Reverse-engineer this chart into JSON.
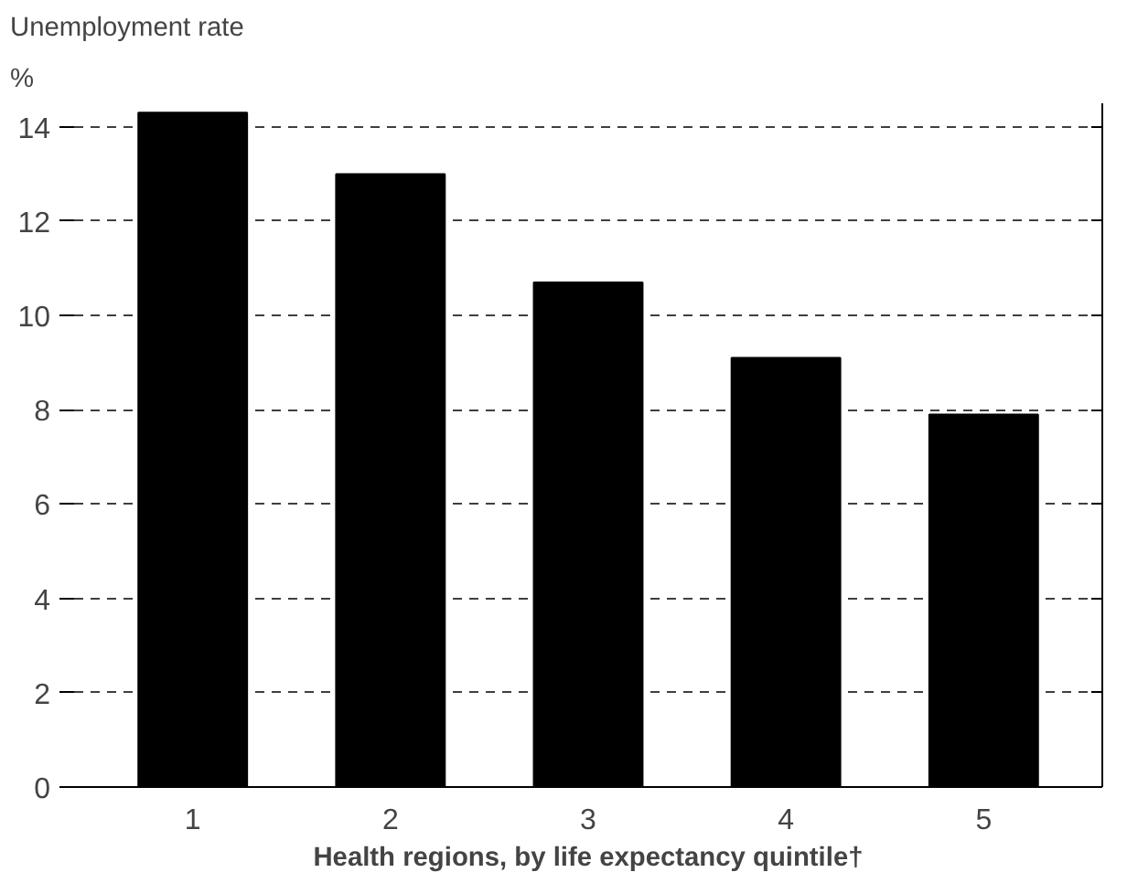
{
  "chart_data": {
    "type": "bar",
    "title": "Unemployment rate",
    "ylabel": "%",
    "xlabel": "Health regions, by life expectancy quintile†",
    "categories": [
      "1",
      "2",
      "3",
      "4",
      "5"
    ],
    "values": [
      14.3,
      13.0,
      10.7,
      9.1,
      7.9
    ],
    "color": "#000000",
    "ylim": [
      0,
      14.5
    ],
    "yticks": [
      0,
      2,
      4,
      6,
      8,
      10,
      12,
      14
    ],
    "grid": "y"
  }
}
